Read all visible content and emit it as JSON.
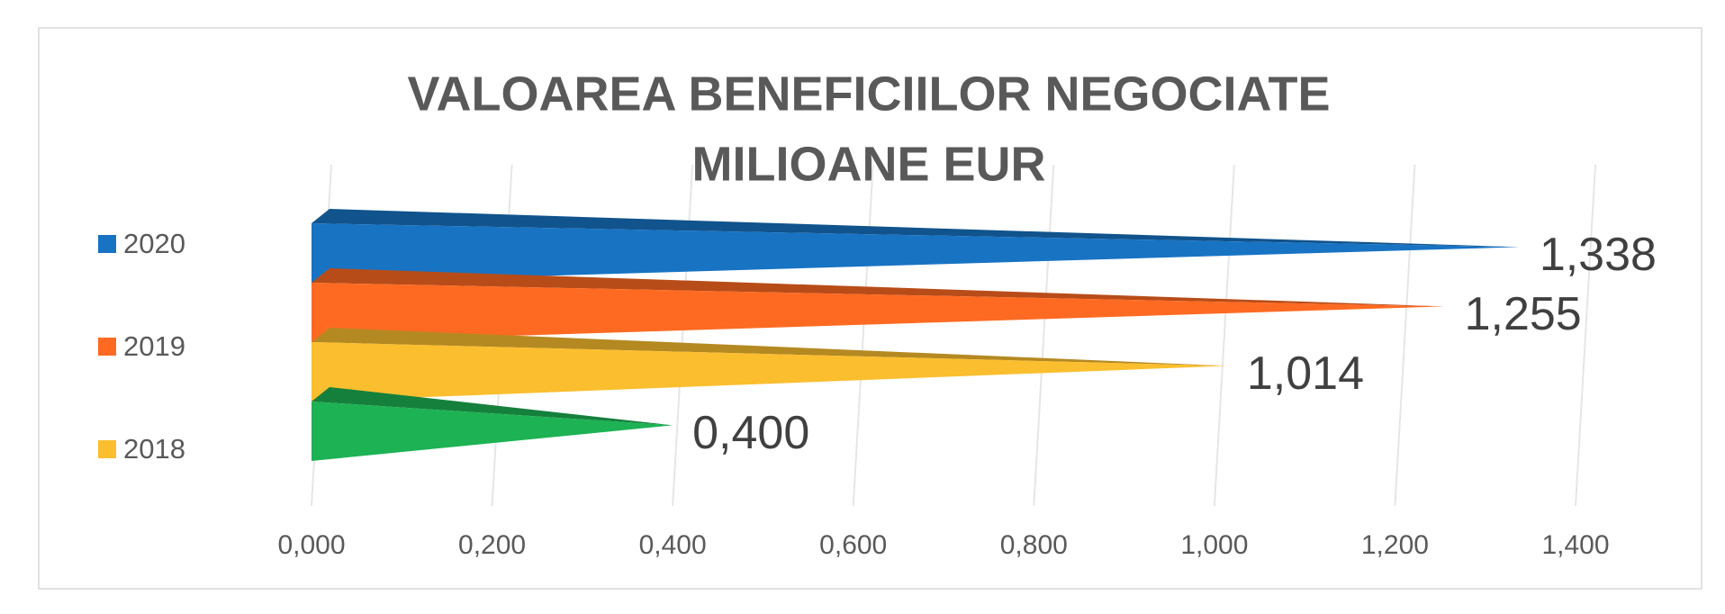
{
  "chart_data": {
    "type": "bar",
    "orientation": "horizontal",
    "shape": "pyramid",
    "title": "VALOAREA BENEFICIILOR NEGOCIATE",
    "subtitle": "MILIOANE EUR",
    "categories": [
      "2020",
      "2019",
      "2018",
      null
    ],
    "values": [
      1.338,
      1.255,
      1.014,
      0.4
    ],
    "value_labels": [
      "1,338",
      "1,255",
      "1,014",
      "0,400"
    ],
    "colors": [
      "#1873c3",
      "#ff6a22",
      "#fbbe2e",
      "#1db254"
    ],
    "xlim": [
      0,
      1.4
    ],
    "xticks": [
      {
        "value": 0,
        "label": "0,000"
      },
      {
        "value": 0.2,
        "label": "0,200"
      },
      {
        "value": 0.4,
        "label": "0,400"
      },
      {
        "value": 0.6,
        "label": "0,600"
      },
      {
        "value": 0.8,
        "label": "0,800"
      },
      {
        "value": 1.0,
        "label": "1,000"
      },
      {
        "value": 1.2,
        "label": "1,200"
      },
      {
        "value": 1.4,
        "label": "1,400"
      }
    ],
    "grid": true,
    "legend": "left"
  }
}
